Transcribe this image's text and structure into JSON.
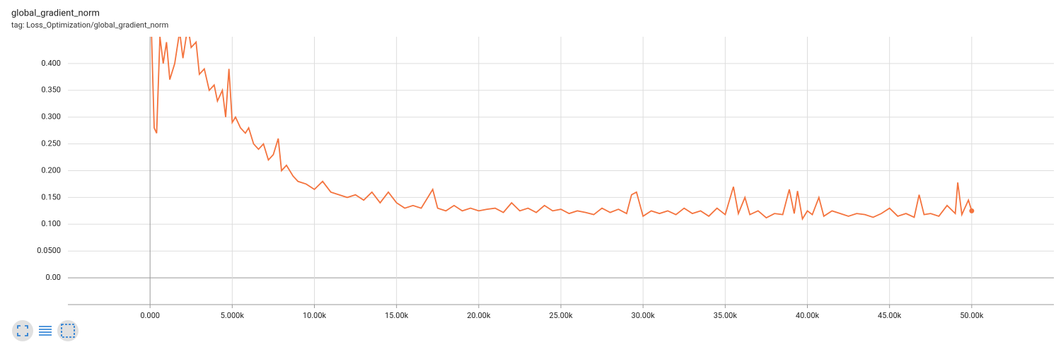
{
  "chart_data": {
    "type": "line",
    "title": "global_gradient_norm",
    "subtitle": "tag: Loss_Optimization/global_gradient_norm",
    "grid": true,
    "xlim": [
      -5000,
      55000
    ],
    "ylim": [
      -0.05,
      0.45
    ],
    "xticks": [
      {
        "value": 0,
        "label": "0.000"
      },
      {
        "value": 5000,
        "label": "5.000k"
      },
      {
        "value": 10000,
        "label": "10.00k"
      },
      {
        "value": 15000,
        "label": "15.00k"
      },
      {
        "value": 20000,
        "label": "20.00k"
      },
      {
        "value": 25000,
        "label": "25.00k"
      },
      {
        "value": 30000,
        "label": "30.00k"
      },
      {
        "value": 35000,
        "label": "35.00k"
      },
      {
        "value": 40000,
        "label": "40.00k"
      },
      {
        "value": 45000,
        "label": "45.00k"
      },
      {
        "value": 50000,
        "label": "50.00k"
      }
    ],
    "yticks": [
      {
        "value": 0,
        "label": "0.00"
      },
      {
        "value": 0.05,
        "label": "0.0500"
      },
      {
        "value": 0.1,
        "label": "0.100"
      },
      {
        "value": 0.15,
        "label": "0.150"
      },
      {
        "value": 0.2,
        "label": "0.200"
      },
      {
        "value": 0.25,
        "label": "0.250"
      },
      {
        "value": 0.3,
        "label": "0.300"
      },
      {
        "value": 0.35,
        "label": "0.350"
      },
      {
        "value": 0.4,
        "label": "0.400"
      }
    ],
    "series": [
      {
        "color": "#f4733d",
        "x": [
          0,
          250,
          400,
          600,
          800,
          1000,
          1200,
          1500,
          1800,
          2000,
          2300,
          2500,
          2800,
          3000,
          3300,
          3600,
          3900,
          4100,
          4400,
          4600,
          4800,
          5000,
          5200,
          5500,
          5800,
          6000,
          6300,
          6600,
          6900,
          7200,
          7500,
          7800,
          8000,
          8300,
          8700,
          9000,
          9500,
          10000,
          10500,
          11000,
          11500,
          12000,
          12500,
          13000,
          13500,
          14000,
          14500,
          15000,
          15500,
          16000,
          16500,
          17200,
          17500,
          18000,
          18500,
          19000,
          19500,
          20000,
          20500,
          21000,
          21500,
          22000,
          22500,
          23000,
          23500,
          24000,
          24500,
          25000,
          25500,
          26000,
          26500,
          27000,
          27500,
          28000,
          28500,
          29000,
          29300,
          29600,
          30000,
          30500,
          31000,
          31500,
          32000,
          32500,
          33000,
          33500,
          34000,
          34500,
          35000,
          35500,
          35800,
          36200,
          36500,
          37000,
          37500,
          38000,
          38500,
          38900,
          39200,
          39400,
          39700,
          40000,
          40300,
          40700,
          41000,
          41500,
          42000,
          42500,
          43000,
          43500,
          44000,
          44500,
          45000,
          45500,
          46000,
          46500,
          46800,
          47100,
          47500,
          48000,
          48500,
          49000,
          49150,
          49400,
          49800,
          50000
        ],
        "values": [
          0.55,
          0.28,
          0.27,
          0.45,
          0.4,
          0.44,
          0.37,
          0.4,
          0.46,
          0.41,
          0.47,
          0.43,
          0.44,
          0.38,
          0.39,
          0.35,
          0.36,
          0.33,
          0.35,
          0.3,
          0.39,
          0.29,
          0.3,
          0.28,
          0.27,
          0.28,
          0.25,
          0.24,
          0.25,
          0.22,
          0.23,
          0.26,
          0.2,
          0.21,
          0.19,
          0.18,
          0.175,
          0.165,
          0.18,
          0.16,
          0.155,
          0.15,
          0.155,
          0.145,
          0.16,
          0.14,
          0.16,
          0.14,
          0.13,
          0.135,
          0.13,
          0.165,
          0.13,
          0.125,
          0.135,
          0.125,
          0.13,
          0.125,
          0.128,
          0.13,
          0.122,
          0.14,
          0.125,
          0.13,
          0.122,
          0.135,
          0.125,
          0.128,
          0.12,
          0.125,
          0.122,
          0.118,
          0.13,
          0.122,
          0.128,
          0.12,
          0.155,
          0.16,
          0.115,
          0.125,
          0.12,
          0.125,
          0.118,
          0.13,
          0.12,
          0.125,
          0.115,
          0.13,
          0.118,
          0.17,
          0.12,
          0.15,
          0.118,
          0.125,
          0.112,
          0.12,
          0.118,
          0.165,
          0.12,
          0.162,
          0.11,
          0.125,
          0.118,
          0.15,
          0.115,
          0.125,
          0.12,
          0.115,
          0.12,
          0.118,
          0.113,
          0.12,
          0.13,
          0.115,
          0.12,
          0.113,
          0.155,
          0.118,
          0.12,
          0.115,
          0.135,
          0.12,
          0.178,
          0.118,
          0.145,
          0.125
        ]
      }
    ]
  }
}
